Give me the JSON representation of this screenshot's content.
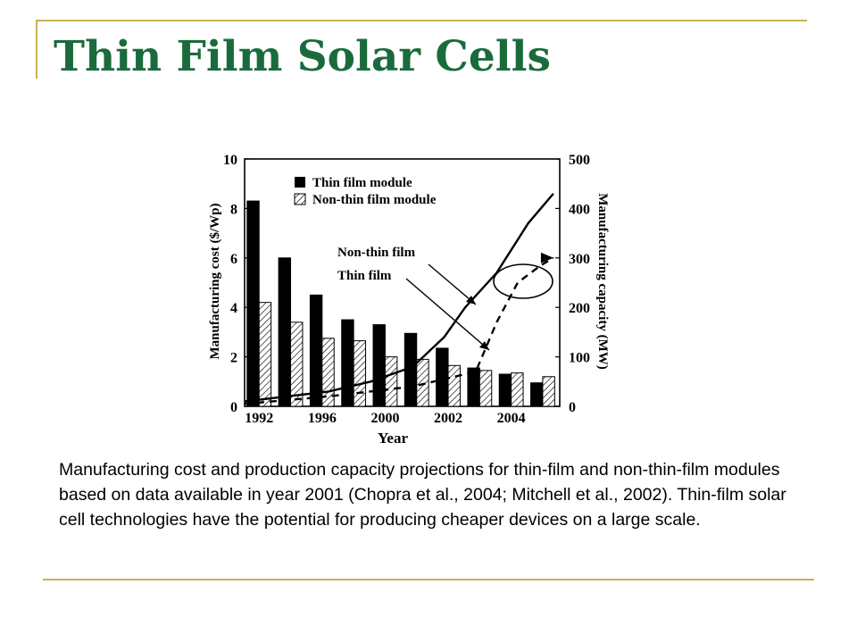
{
  "slide": {
    "title": "Thin Film Solar Cells",
    "caption": "Manufacturing cost and production capacity projections for thin-film and non-thin-film modules based on data available in year 2001 (Chopra et al., 2004; Mitchell et al., 2002). Thin-film solar cell technologies have the potential for producing cheaper devices on a large scale.",
    "accent_color": "#c8b155",
    "title_color": "#1a6b3c"
  },
  "chart_data": {
    "type": "bar",
    "xlabel": "Year",
    "ylabel": "Manufacturing cost ($/Wp)",
    "y2label": "Manufacturing capacity (MW)",
    "ylim": [
      0,
      10
    ],
    "y2lim": [
      0,
      500
    ],
    "yticks": [
      "0",
      "2",
      "4",
      "6",
      "8",
      "10"
    ],
    "y2ticks": [
      "0",
      "100",
      "200",
      "300",
      "400",
      "500"
    ],
    "xtick_labels": [
      "1992",
      "1996",
      "2000",
      "2002",
      "2004"
    ],
    "grid": false,
    "legend_position": "top-left",
    "series": [
      {
        "name": "Thin film module",
        "type": "bar",
        "fill": "solid black",
        "values": [
          8.3,
          6.0,
          4.5,
          3.5,
          3.3,
          2.95,
          2.35,
          1.55,
          1.3,
          0.95
        ]
      },
      {
        "name": "Non-thin film module",
        "type": "bar",
        "fill": "hatched",
        "values": [
          4.2,
          3.4,
          2.75,
          2.65,
          2.0,
          1.9,
          1.65,
          1.45,
          1.35,
          1.2
        ]
      }
    ],
    "capacity_lines": [
      {
        "label": "Non-thin film",
        "style": "solid",
        "points": [
          [
            0,
            10
          ],
          [
            2,
            20
          ],
          [
            4,
            30
          ],
          [
            6,
            50
          ],
          [
            8,
            80
          ],
          [
            9.5,
            140
          ],
          [
            10.5,
            200
          ],
          [
            12,
            270
          ],
          [
            13.5,
            370
          ],
          [
            14.7,
            430
          ]
        ]
      },
      {
        "label": "Thin film",
        "style": "dashed",
        "points": [
          [
            0,
            5
          ],
          [
            4,
            20
          ],
          [
            8,
            40
          ],
          [
            10,
            60
          ],
          [
            11,
            70
          ],
          [
            12,
            170
          ],
          [
            13,
            250
          ],
          [
            14.1,
            285
          ],
          [
            14.7,
            300
          ]
        ]
      }
    ]
  }
}
